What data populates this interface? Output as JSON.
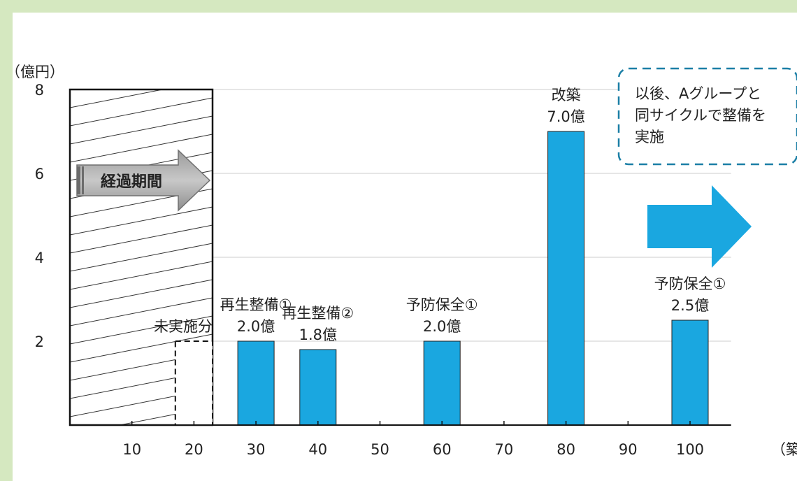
{
  "chart_data": {
    "type": "bar",
    "ylabel": "（億円）",
    "xlabel": "（築年数）",
    "ylim": [
      0,
      8
    ],
    "yticks": [
      2,
      4,
      6,
      8
    ],
    "xlim": [
      0,
      110
    ],
    "xticks": [
      10,
      20,
      30,
      40,
      50,
      60,
      70,
      80,
      90,
      100
    ],
    "grid": true,
    "series": [
      {
        "color": "#1aa7e0",
        "points": [
          {
            "x": 30,
            "y": 2.0,
            "label_lines": [
              "再生整備①",
              "2.0億"
            ]
          },
          {
            "x": 40,
            "y": 1.8,
            "label_lines": [
              "再生整備②",
              "1.8億"
            ]
          },
          {
            "x": 60,
            "y": 2.0,
            "label_lines": [
              "予防保全①",
              "2.0億"
            ]
          },
          {
            "x": 80,
            "y": 7.0,
            "label_lines": [
              "改築",
              "7.0億"
            ]
          },
          {
            "x": 100,
            "y": 2.5,
            "label_lines": [
              "予防保全①",
              "2.5億"
            ]
          }
        ]
      }
    ],
    "elapsed_period": {
      "x_from": 0,
      "x_to": 23,
      "label": "経過期間"
    },
    "unexecuted": {
      "x_from": 17,
      "x_to": 23,
      "y": 2.0,
      "label": "未実施分"
    },
    "callout": {
      "lines": [
        "以後、Aグループと",
        "同サイクルで整備を",
        "実施"
      ],
      "border_color": "#1b7fa6"
    },
    "arrow_color": "#1aa7e0"
  }
}
